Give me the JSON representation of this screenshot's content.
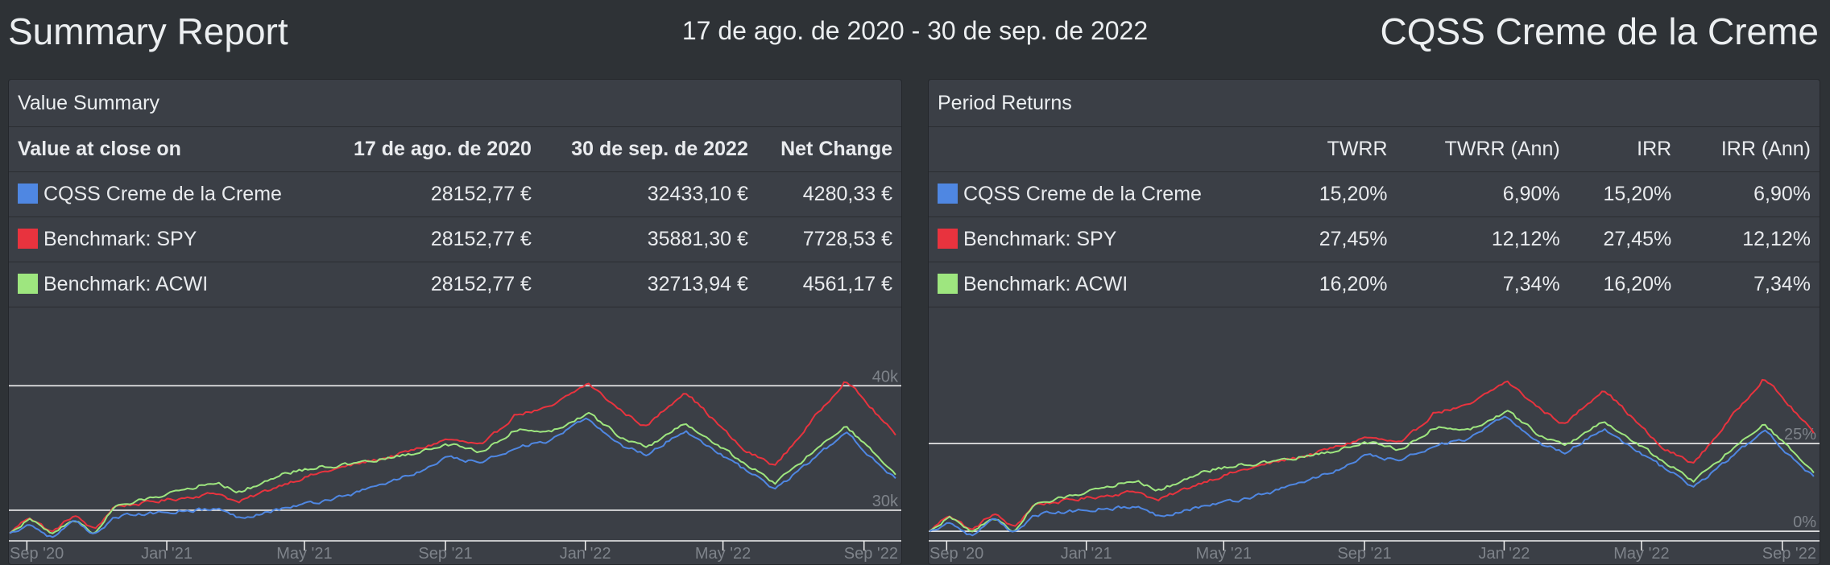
{
  "header": {
    "title": "Summary Report",
    "date_range": "17 de ago. de 2020 - 30 de sep. de 2022",
    "portfolio": "CQSS Creme de la Creme"
  },
  "colors": {
    "portfolio": "#4f87e2",
    "spy": "#e8333e",
    "acwi": "#9ee67f"
  },
  "value_summary": {
    "title": "Value Summary",
    "columns": [
      "Value at close on",
      "17 de ago. de 2020",
      "30 de sep. de 2022",
      "Net Change"
    ],
    "rows": [
      {
        "name": "CQSS Creme de la Creme",
        "color": "#4f87e2",
        "start": "28152,77 €",
        "end": "32433,10 €",
        "change": "4280,33 €"
      },
      {
        "name": "Benchmark: SPY",
        "color": "#e8333e",
        "start": "28152,77 €",
        "end": "35881,30 €",
        "change": "7728,53 €"
      },
      {
        "name": "Benchmark: ACWI",
        "color": "#9ee67f",
        "start": "28152,77 €",
        "end": "32713,94 €",
        "change": "4561,17 €"
      }
    ]
  },
  "period_returns": {
    "title": "Period Returns",
    "columns": [
      "",
      "TWRR",
      "TWRR (Ann)",
      "IRR",
      "IRR (Ann)"
    ],
    "rows": [
      {
        "name": "CQSS Creme de la Creme",
        "color": "#4f87e2",
        "twrr": "15,20%",
        "twrr_ann": "6,90%",
        "irr": "15,20%",
        "irr_ann": "6,90%"
      },
      {
        "name": "Benchmark: SPY",
        "color": "#e8333e",
        "twrr": "27,45%",
        "twrr_ann": "12,12%",
        "irr": "27,45%",
        "irr_ann": "12,12%"
      },
      {
        "name": "Benchmark: ACWI",
        "color": "#9ee67f",
        "twrr": "16,20%",
        "twrr_ann": "7,34%",
        "irr": "16,20%",
        "irr_ann": "7,34%"
      }
    ]
  },
  "chart_data": [
    {
      "type": "line",
      "x_tick_labels": [
        "Sep '20",
        "Jan '21",
        "May '21",
        "Sep '21",
        "Jan '22",
        "May '22",
        "Sep '22"
      ],
      "x_range": [
        "2020-08-17",
        "2022-09-30"
      ],
      "y_tick_labels": [
        "30k",
        "40k"
      ],
      "y_ticks": [
        30000,
        40000
      ],
      "ylim": [
        27600,
        41700
      ],
      "grid": true,
      "series": [
        {
          "name": "Benchmark: SPY",
          "color": "#e8333e",
          "dates": [
            "2020-08-17",
            "2020-09-03",
            "2020-09-23",
            "2020-10-12",
            "2020-10-30",
            "2020-11-16",
            "2020-12-15",
            "2021-01-15",
            "2021-02-15",
            "2021-03-04",
            "2021-04-15",
            "2021-05-15",
            "2021-06-15",
            "2021-07-15",
            "2021-08-15",
            "2021-09-02",
            "2021-10-04",
            "2021-11-01",
            "2021-12-01",
            "2022-01-03",
            "2022-02-01",
            "2022-02-23",
            "2022-03-29",
            "2022-05-19",
            "2022-06-16",
            "2022-08-16",
            "2022-09-30"
          ],
          "values": [
            28152,
            29500,
            28200,
            29600,
            28400,
            30300,
            30600,
            31000,
            31400,
            30600,
            32200,
            33000,
            33700,
            34300,
            35100,
            35700,
            35200,
            37700,
            38200,
            40200,
            38000,
            36700,
            39600,
            34800,
            33600,
            40500,
            35881
          ]
        },
        {
          "name": "Benchmark: ACWI",
          "color": "#9ee67f",
          "dates": [
            "2020-08-17",
            "2020-09-03",
            "2020-09-23",
            "2020-10-12",
            "2020-10-30",
            "2020-11-16",
            "2020-12-15",
            "2021-01-15",
            "2021-02-15",
            "2021-03-04",
            "2021-04-15",
            "2021-05-15",
            "2021-06-15",
            "2021-07-15",
            "2021-08-15",
            "2021-09-02",
            "2021-10-04",
            "2021-11-01",
            "2021-12-01",
            "2022-01-03",
            "2022-02-01",
            "2022-02-23",
            "2022-03-29",
            "2022-05-19",
            "2022-06-16",
            "2022-08-16",
            "2022-09-30"
          ],
          "values": [
            28152,
            29300,
            28100,
            29300,
            28100,
            30200,
            30900,
            31700,
            32300,
            31400,
            33000,
            33500,
            33700,
            34200,
            34800,
            35300,
            34700,
            36500,
            36300,
            37800,
            35900,
            35000,
            37000,
            33800,
            32200,
            36800,
            32714
          ]
        },
        {
          "name": "CQSS Creme de la Creme",
          "color": "#4f87e2",
          "dates": [
            "2020-08-17",
            "2020-09-03",
            "2020-09-23",
            "2020-10-12",
            "2020-10-30",
            "2020-11-16",
            "2020-12-15",
            "2021-01-15",
            "2021-02-15",
            "2021-03-04",
            "2021-04-15",
            "2021-05-15",
            "2021-06-15",
            "2021-07-15",
            "2021-08-15",
            "2021-09-02",
            "2021-10-04",
            "2021-11-01",
            "2021-12-01",
            "2022-01-03",
            "2022-02-01",
            "2022-02-23",
            "2022-03-29",
            "2022-05-19",
            "2022-06-16",
            "2022-08-16",
            "2022-09-30"
          ],
          "values": [
            28152,
            28900,
            27800,
            29100,
            27900,
            29500,
            29700,
            30000,
            30100,
            29400,
            30200,
            30700,
            31400,
            32300,
            33300,
            34200,
            33800,
            35100,
            35500,
            37400,
            35200,
            34500,
            36400,
            33300,
            31700,
            36200,
            32433
          ]
        }
      ]
    },
    {
      "type": "line",
      "x_tick_labels": [
        "Sep '20",
        "Jan '21",
        "May '21",
        "Sep '21",
        "Jan '22",
        "May '22",
        "Sep '22"
      ],
      "x_range": [
        "2020-08-17",
        "2022-09-30"
      ],
      "y_tick_labels": [
        "0%",
        "25%"
      ],
      "y_ticks": [
        0,
        25
      ],
      "ylim": [
        -2.5,
        47.5
      ],
      "grid": true,
      "series": [
        {
          "name": "Benchmark: SPY",
          "color": "#e8333e",
          "dates": [
            "2020-08-17",
            "2020-09-03",
            "2020-09-23",
            "2020-10-12",
            "2020-10-30",
            "2020-11-16",
            "2020-12-15",
            "2021-01-15",
            "2021-02-15",
            "2021-03-04",
            "2021-04-15",
            "2021-05-15",
            "2021-06-15",
            "2021-07-15",
            "2021-08-15",
            "2021-09-02",
            "2021-10-04",
            "2021-11-01",
            "2021-12-01",
            "2022-01-03",
            "2022-02-01",
            "2022-02-23",
            "2022-03-29",
            "2022-05-19",
            "2022-06-16",
            "2022-08-16",
            "2022-09-30"
          ],
          "values": [
            0,
            4.8,
            0.2,
            5.1,
            0.9,
            7.6,
            8.7,
            10.1,
            11.5,
            8.7,
            14.4,
            17.2,
            19.7,
            21.8,
            24.7,
            26.8,
            25.0,
            33.9,
            35.7,
            42.8,
            35.0,
            30.4,
            40.7,
            23.6,
            19.4,
            43.9,
            27.45
          ]
        },
        {
          "name": "Benchmark: ACWI",
          "color": "#9ee67f",
          "dates": [
            "2020-08-17",
            "2020-09-03",
            "2020-09-23",
            "2020-10-12",
            "2020-10-30",
            "2020-11-16",
            "2020-12-15",
            "2021-01-15",
            "2021-02-15",
            "2021-03-04",
            "2021-04-15",
            "2021-05-15",
            "2021-06-15",
            "2021-07-15",
            "2021-08-15",
            "2021-09-02",
            "2021-10-04",
            "2021-11-01",
            "2021-12-01",
            "2022-01-03",
            "2022-02-01",
            "2022-02-23",
            "2022-03-29",
            "2022-05-19",
            "2022-06-16",
            "2022-08-16",
            "2022-09-30"
          ],
          "values": [
            0,
            4.1,
            -0.2,
            4.1,
            -0.2,
            7.3,
            9.8,
            12.6,
            14.7,
            11.5,
            17.2,
            19.0,
            19.7,
            21.5,
            23.6,
            25.4,
            23.3,
            29.7,
            28.9,
            34.3,
            27.5,
            24.3,
            31.4,
            20.1,
            14.4,
            30.7,
            16.2
          ]
        },
        {
          "name": "CQSS Creme de la Creme",
          "color": "#4f87e2",
          "dates": [
            "2020-08-17",
            "2020-09-03",
            "2020-09-23",
            "2020-10-12",
            "2020-10-30",
            "2020-11-16",
            "2020-12-15",
            "2021-01-15",
            "2021-02-15",
            "2021-03-04",
            "2021-04-15",
            "2021-05-15",
            "2021-06-15",
            "2021-07-15",
            "2021-08-15",
            "2021-09-02",
            "2021-10-04",
            "2021-11-01",
            "2021-12-01",
            "2022-01-03",
            "2022-02-01",
            "2022-02-23",
            "2022-03-29",
            "2022-05-19",
            "2022-06-16",
            "2022-08-16",
            "2022-09-30"
          ],
          "values": [
            0,
            2.7,
            -1.3,
            3.4,
            -0.9,
            4.8,
            5.5,
            6.6,
            6.9,
            4.4,
            7.3,
            9.0,
            11.5,
            14.7,
            18.3,
            21.5,
            20.1,
            24.7,
            26.1,
            32.8,
            25.0,
            22.5,
            29.3,
            18.3,
            12.6,
            28.6,
            15.2
          ]
        }
      ]
    }
  ]
}
